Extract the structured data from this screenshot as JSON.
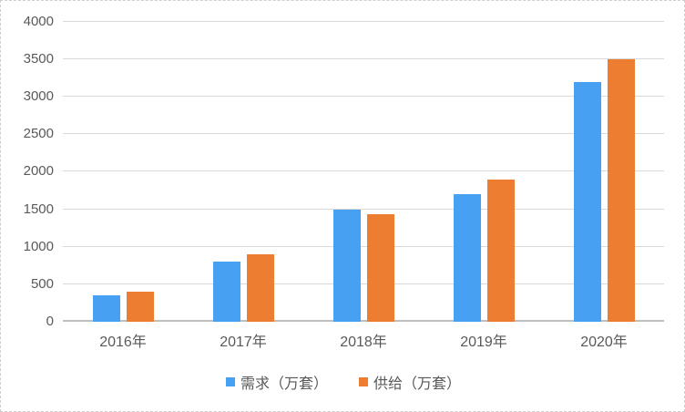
{
  "chart_data": {
    "type": "bar",
    "categories": [
      "2016年",
      "2017年",
      "2018年",
      "2019年",
      "2020年"
    ],
    "series": [
      {
        "name": "需求（万套）",
        "color": "#47A0F2",
        "values": [
          350,
          800,
          1500,
          1700,
          3200
        ]
      },
      {
        "name": "供给（万套）",
        "color": "#ED7D31",
        "values": [
          400,
          900,
          1430,
          1900,
          3500
        ]
      }
    ],
    "title": "",
    "xlabel": "",
    "ylabel": "",
    "ylim": [
      0,
      4000
    ],
    "yticks": [
      0,
      500,
      1000,
      1500,
      2000,
      2500,
      3000,
      3500,
      4000
    ],
    "grid": true,
    "legend_position": "bottom-center"
  },
  "colors": {
    "gridline": "#d9d9d9",
    "axis_line": "#bfbfbf",
    "tick_text": "#595959",
    "background": "#ffffff",
    "border": "#cfcfcf"
  }
}
